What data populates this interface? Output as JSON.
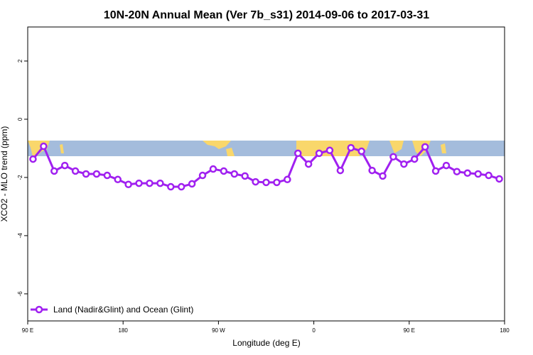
{
  "chart_data": {
    "type": "line",
    "title": "10N-20N Annual Mean (Ver 7b_s31)   2014-09-06 to 2017-03-31",
    "x_label": "Longitude (deg E)",
    "y_label": "XCO2 - MLO trend (ppm)",
    "x": [
      95,
      105,
      115,
      125,
      135,
      145,
      155,
      165,
      175,
      185,
      195,
      205,
      215,
      225,
      235,
      245,
      255,
      265,
      275,
      285,
      295,
      305,
      315,
      325,
      335,
      345,
      355,
      365,
      375,
      385,
      395,
      405,
      415,
      425,
      435,
      445,
      455,
      465,
      475,
      485,
      495,
      505,
      515,
      525,
      535
    ],
    "series": [
      {
        "name": "Land (Nadir&Glint) and Ocean (Glint)",
        "color": "#a020f0",
        "values": [
          -1.37,
          -0.93,
          -1.78,
          -1.59,
          -1.78,
          -1.88,
          -1.88,
          -1.93,
          -2.07,
          -2.24,
          -2.2,
          -2.2,
          -2.2,
          -2.32,
          -2.32,
          -2.22,
          -1.93,
          -1.71,
          -1.78,
          -1.88,
          -1.95,
          -2.15,
          -2.17,
          -2.17,
          -2.07,
          -1.17,
          -1.54,
          -1.17,
          -1.07,
          -1.76,
          -0.98,
          -1.1,
          -1.76,
          -1.95,
          -1.29,
          -1.54,
          -1.37,
          -0.95,
          -1.78,
          -1.59,
          -1.8,
          -1.85,
          -1.88,
          -1.93,
          -2.05
        ]
      }
    ],
    "xlim": [
      90,
      540
    ],
    "xticks": [
      {
        "value": 90,
        "label": "90 E"
      },
      180,
      {
        "value": 270,
        "label": "90 W"
      },
      {
        "value": 360,
        "label": "0"
      },
      {
        "value": 450,
        "label": "90 E"
      },
      {
        "value": 540,
        "label": "180"
      }
    ],
    "ylim": [
      -6.93,
      3.17
    ],
    "yticks": [
      2,
      0,
      -2,
      -4,
      -6
    ],
    "legend": "bottom-left"
  }
}
